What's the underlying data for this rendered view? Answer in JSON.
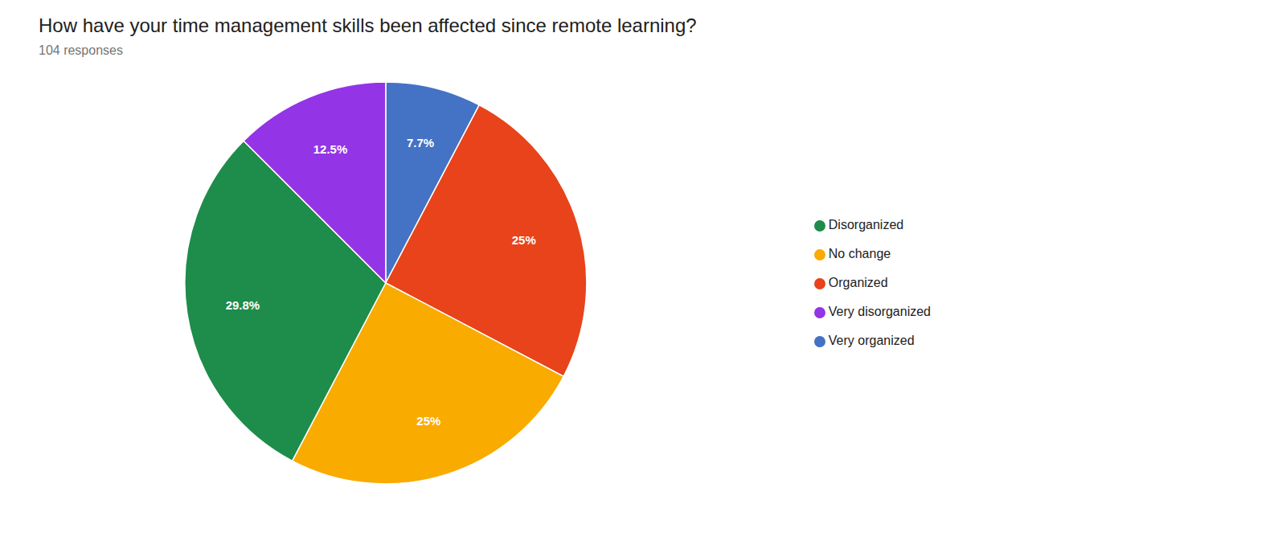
{
  "chart_data": {
    "type": "pie",
    "title": "How have your time management skills been affected since remote learning?",
    "subtitle": "104 responses",
    "categories": [
      "Very organized",
      "Organized",
      "No change",
      "Disorganized",
      "Very disorganized"
    ],
    "values": [
      7.7,
      25.0,
      25.0,
      29.8,
      12.5
    ],
    "value_labels": [
      "7.7%",
      "25%",
      "25%",
      "29.8%",
      "12.5%"
    ],
    "colors": [
      "#4472C4",
      "#E8431A",
      "#F9AB00",
      "#1E8C4A",
      "#9334E6"
    ],
    "data_labels": true,
    "legend": "right"
  }
}
